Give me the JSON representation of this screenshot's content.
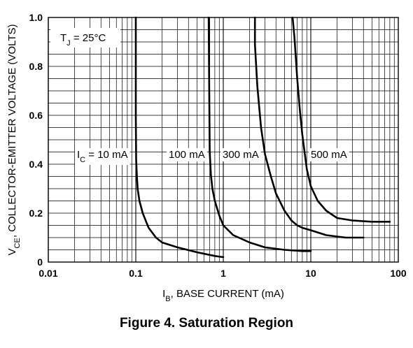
{
  "chart_data": {
    "type": "line",
    "title": "Figure 4. Saturation Region",
    "xlabel": {
      "main": "I",
      "sub": "B",
      "rest": ", BASE CURRENT (mA)"
    },
    "ylabel": {
      "main": "V",
      "sub": "CE",
      "rest": ", COLLECTOR-EMITTER VOLTAGE (VOLTS)"
    },
    "x_scale": "log",
    "xlim": [
      0.01,
      100
    ],
    "ylim": [
      0,
      1.0
    ],
    "x_ticks": [
      "0.01",
      "0.1",
      "1",
      "10",
      "100"
    ],
    "y_ticks": [
      "0",
      "0.2",
      "0.4",
      "0.6",
      "0.8",
      "1.0"
    ],
    "grid": true,
    "annotation": {
      "main": "T",
      "sub": "J",
      "rest": " = 25°C"
    },
    "series": [
      {
        "name": "I_C = 10 mA",
        "label_main": "I",
        "label_sub": "C",
        "label_rest": " = 10 mA",
        "x": [
          0.1,
          0.1,
          0.101,
          0.103,
          0.105,
          0.11,
          0.12,
          0.14,
          0.17,
          0.2,
          0.3,
          0.5,
          0.8,
          1.0
        ],
        "y": [
          1.0,
          0.6,
          0.42,
          0.35,
          0.3,
          0.25,
          0.2,
          0.14,
          0.1,
          0.08,
          0.06,
          0.04,
          0.025,
          0.02
        ]
      },
      {
        "name": "100 mA",
        "label_main": "100 mA",
        "label_sub": "",
        "label_rest": "",
        "x": [
          0.68,
          0.69,
          0.7,
          0.72,
          0.75,
          0.8,
          0.9,
          1.0,
          1.3,
          2.0,
          3.0,
          5.0,
          8.0,
          10.0
        ],
        "y": [
          1.0,
          0.7,
          0.45,
          0.36,
          0.3,
          0.25,
          0.19,
          0.15,
          0.11,
          0.08,
          0.06,
          0.05,
          0.045,
          0.045
        ]
      },
      {
        "name": "300 mA",
        "label_main": "300 mA",
        "label_sub": "",
        "label_rest": "",
        "x": [
          2.3,
          2.3,
          2.45,
          2.7,
          3.0,
          3.5,
          4.0,
          5.0,
          6.0,
          7.0,
          8.0,
          10.0,
          15.0,
          25.0,
          40.0
        ],
        "y": [
          1.0,
          0.89,
          0.72,
          0.55,
          0.44,
          0.35,
          0.28,
          0.21,
          0.17,
          0.15,
          0.14,
          0.13,
          0.11,
          0.1,
          0.1
        ]
      },
      {
        "name": "500 mA",
        "label_main": "500 mA",
        "label_sub": "",
        "label_rest": "",
        "x": [
          6.2,
          6.5,
          7.0,
          7.5,
          8.0,
          9.0,
          10.0,
          12.0,
          15.0,
          20.0,
          30.0,
          50.0,
          80.0
        ],
        "y": [
          1.0,
          0.92,
          0.75,
          0.62,
          0.52,
          0.38,
          0.31,
          0.25,
          0.21,
          0.18,
          0.17,
          0.165,
          0.165
        ]
      }
    ]
  }
}
